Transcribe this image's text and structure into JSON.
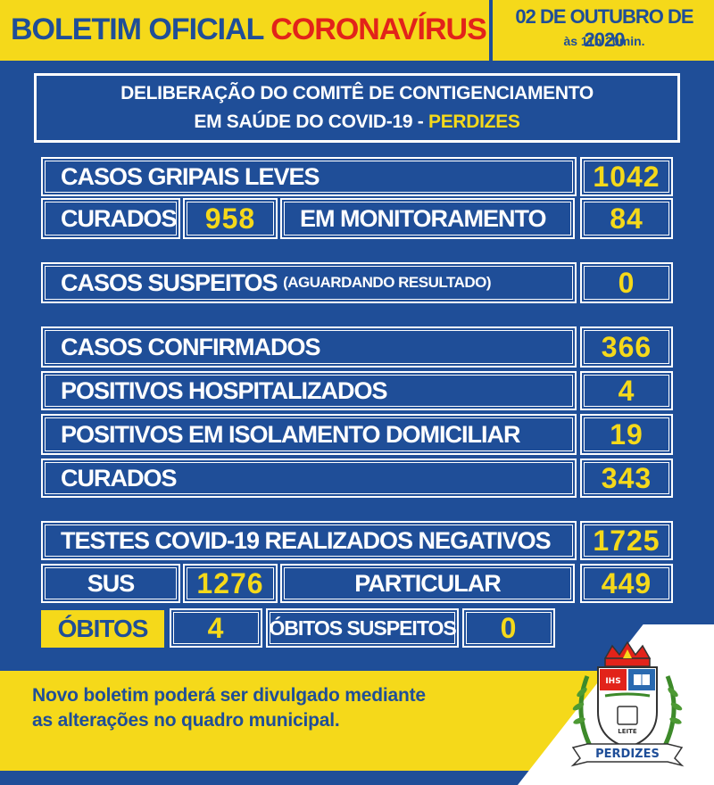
{
  "header": {
    "title_main": "BOLETIM OFICIAL",
    "title_highlight": "CORONAVÍRUS",
    "date": "02 DE OUTUBRO DE 2020",
    "time": "às 11h 20min."
  },
  "panel": {
    "line1": "DELIBERAÇÃO DO COMITÊ DE CONTIGENCIAMENTO",
    "line2_prefix": "EM SAÚDE DO COVID-19 - ",
    "line2_city": "PERDIZES"
  },
  "rows": {
    "casos_gripais_label": "CASOS GRIPAIS LEVES",
    "casos_gripais_value": "1042",
    "curados_label": "CURADOS",
    "curados_value": "958",
    "monitoramento_label": "EM MONITORAMENTO",
    "monitoramento_value": "84",
    "suspeitos_label": "CASOS SUSPEITOS",
    "suspeitos_note": "(AGUARDANDO RESULTADO)",
    "suspeitos_value": "0",
    "confirmados_label": "CASOS CONFIRMADOS",
    "confirmados_value": "366",
    "hospitalizados_label": "POSITIVOS HOSPITALIZADOS",
    "hospitalizados_value": "4",
    "isolamento_label": "POSITIVOS EM ISOLAMENTO DOMICILIAR",
    "isolamento_value": "19",
    "curados2_label": "CURADOS",
    "curados2_value": "343",
    "testes_label": "TESTES COVID-19 REALIZADOS NEGATIVOS",
    "testes_value": "1725",
    "sus_label": "SUS",
    "sus_value": "1276",
    "particular_label": "PARTICULAR",
    "particular_value": "449",
    "obitos_label": "ÓBITOS",
    "obitos_value": "4",
    "obitos_suspeitos_label": "ÓBITOS SUSPEITOS",
    "obitos_suspeitos_value": "0"
  },
  "footer": {
    "line1": "Novo boletim poderá ser divulgado mediante",
    "line2": "as alterações no quadro municipal."
  },
  "logo": {
    "banner": "PERDIZES",
    "shield_left": "IHS",
    "shield_bottom": "LEITE"
  },
  "colors": {
    "blue": "#1f4e98",
    "yellow": "#f5d91a",
    "red": "#e2231a",
    "white": "#ffffff"
  }
}
